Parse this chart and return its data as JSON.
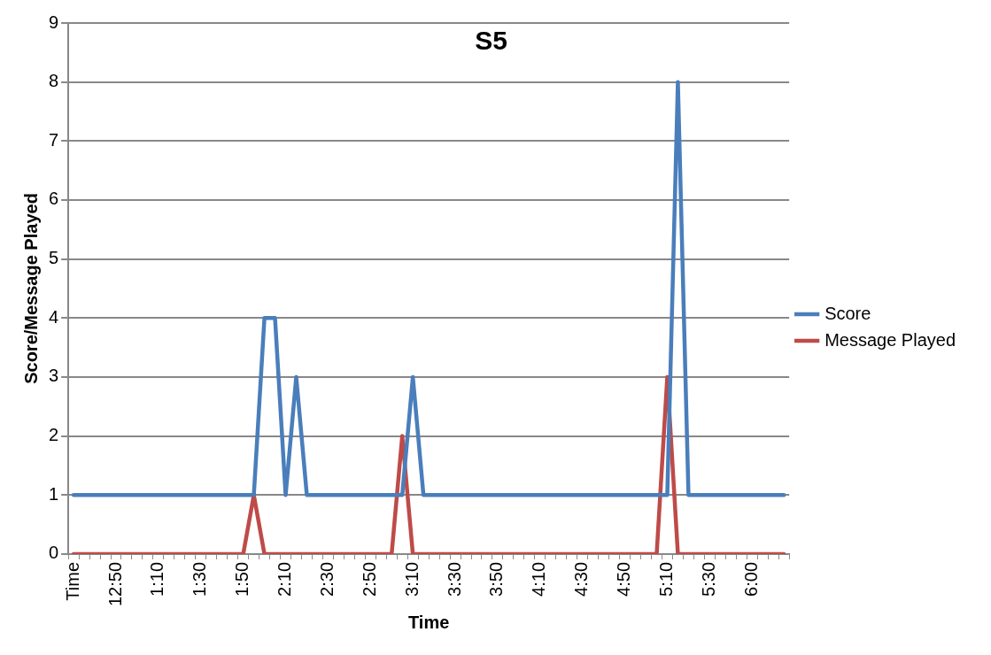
{
  "chart_data": {
    "type": "line",
    "title": "S5",
    "xlabel": "Time",
    "ylabel": "Score/Message Played",
    "categories": [
      "Time",
      null,
      null,
      null,
      "12:50",
      null,
      null,
      null,
      "1:10",
      null,
      null,
      null,
      "1:30",
      null,
      null,
      null,
      "1:50",
      null,
      null,
      null,
      "2:10",
      null,
      null,
      null,
      "2:30",
      null,
      null,
      null,
      "2:50",
      null,
      null,
      null,
      "3:10",
      null,
      null,
      null,
      "3:30",
      null,
      null,
      null,
      "3:50",
      null,
      null,
      null,
      "4:10",
      null,
      null,
      null,
      "4:30",
      null,
      null,
      null,
      "4:50",
      null,
      null,
      null,
      "5:10",
      null,
      null,
      null,
      "5:30",
      null,
      null,
      null,
      "6:00",
      null,
      null,
      null
    ],
    "series": [
      {
        "name": "Score",
        "color": "#4a7ebb",
        "values": [
          1,
          1,
          1,
          1,
          1,
          1,
          1,
          1,
          1,
          1,
          1,
          1,
          1,
          1,
          1,
          1,
          1,
          1,
          4,
          4,
          1,
          3,
          1,
          1,
          1,
          1,
          1,
          1,
          1,
          1,
          1,
          1,
          3,
          1,
          1,
          1,
          1,
          1,
          1,
          1,
          1,
          1,
          1,
          1,
          1,
          1,
          1,
          1,
          1,
          1,
          1,
          1,
          1,
          1,
          1,
          1,
          1,
          8,
          1,
          1,
          1,
          1,
          1,
          1,
          1,
          1,
          1,
          1
        ]
      },
      {
        "name": "Message Played",
        "color": "#be4b48",
        "values": [
          0,
          0,
          0,
          0,
          0,
          0,
          0,
          0,
          0,
          0,
          0,
          0,
          0,
          0,
          0,
          0,
          0,
          1,
          0,
          0,
          0,
          0,
          0,
          0,
          0,
          0,
          0,
          0,
          0,
          0,
          0,
          2,
          0,
          0,
          0,
          0,
          0,
          0,
          0,
          0,
          0,
          0,
          0,
          0,
          0,
          0,
          0,
          0,
          0,
          0,
          0,
          0,
          0,
          0,
          0,
          0,
          3,
          0,
          0,
          0,
          0,
          0,
          0,
          0,
          0,
          0,
          0,
          0
        ]
      }
    ],
    "ylim": [
      0,
      9
    ],
    "yticks": [
      0,
      1,
      2,
      3,
      4,
      5,
      6,
      7,
      8,
      9
    ],
    "grid": "y",
    "legend": "right",
    "marker": "none",
    "line_style": "solid"
  }
}
